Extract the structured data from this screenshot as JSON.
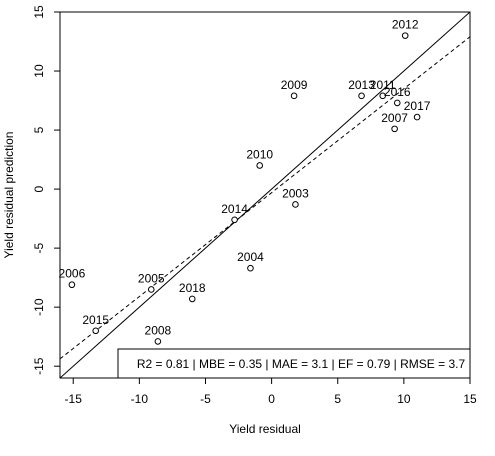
{
  "chart_data": {
    "type": "scatter",
    "xlabel": "Yield residual",
    "ylabel": "Yield residual prediction",
    "xlim": [
      -16,
      15
    ],
    "ylim": [
      -16,
      15
    ],
    "xticks": [
      "-15",
      "-10",
      "-5",
      "0",
      "5",
      "10",
      "15"
    ],
    "yticks": [
      "-15",
      "-10",
      "-5",
      "0",
      "5",
      "10",
      "15"
    ],
    "grid": false,
    "points": [
      {
        "label": "2012",
        "x": 10.1,
        "y": 13.0
      },
      {
        "label": "2009",
        "x": 1.7,
        "y": 7.9
      },
      {
        "label": "2013",
        "x": 6.8,
        "y": 7.9
      },
      {
        "label": "2011",
        "x": 8.4,
        "y": 7.9
      },
      {
        "label": "2016",
        "x": 9.5,
        "y": 7.3
      },
      {
        "label": "2017",
        "x": 11.0,
        "y": 6.1
      },
      {
        "label": "2007",
        "x": 9.3,
        "y": 5.1
      },
      {
        "label": "2010",
        "x": -0.9,
        "y": 2.0
      },
      {
        "label": "2003",
        "x": 1.8,
        "y": -1.3
      },
      {
        "label": "2014",
        "x": -2.8,
        "y": -2.6
      },
      {
        "label": "2004",
        "x": -1.6,
        "y": -6.7
      },
      {
        "label": "2006",
        "x": -15.1,
        "y": -8.1
      },
      {
        "label": "2005",
        "x": -9.1,
        "y": -8.5
      },
      {
        "label": "2018",
        "x": -6.0,
        "y": -9.3
      },
      {
        "label": "2015",
        "x": -13.3,
        "y": -12.0
      },
      {
        "label": "2008",
        "x": -8.6,
        "y": -12.9
      }
    ],
    "reference_line": {
      "kind": "1:1",
      "intercept": 0,
      "slope": 1
    },
    "fit_line": {
      "kind": "regression",
      "intercept": -0.3,
      "slope": 0.88
    },
    "metrics_text": "R2 = 0.81 | MBE = 0.35 | MAE = 3.1 | EF = 0.79 | RMSE = 3.7"
  }
}
